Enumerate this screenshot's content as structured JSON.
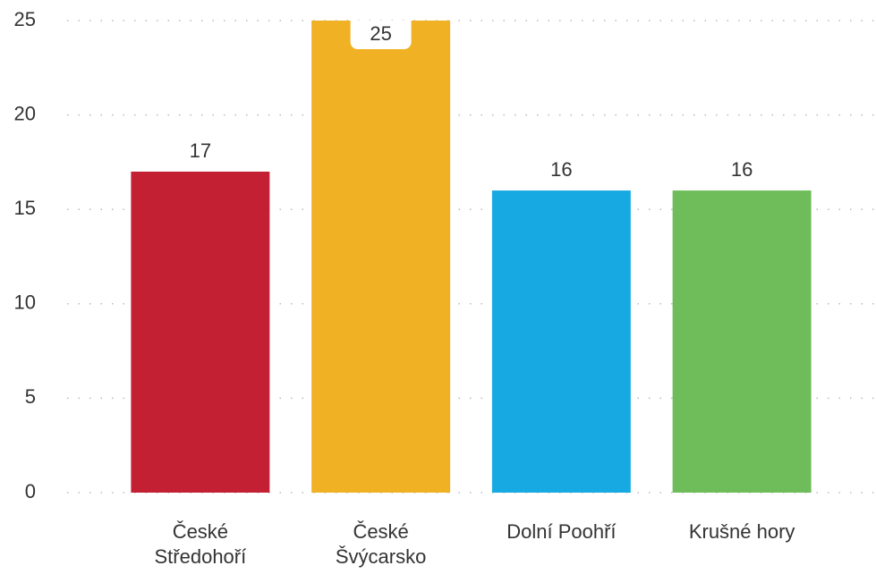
{
  "chart_data": {
    "type": "bar",
    "categories": [
      "České Středohoří",
      "České Švýcarsko",
      "Dolní Poohří",
      "Krušné hory"
    ],
    "values": [
      17,
      25,
      16,
      16
    ],
    "colors": [
      "#c42033",
      "#f1b124",
      "#17a9e1",
      "#6ebd5a"
    ],
    "ylim": [
      0,
      25
    ],
    "yticks": [
      0,
      5,
      10,
      15,
      20,
      25
    ],
    "grid": true
  }
}
